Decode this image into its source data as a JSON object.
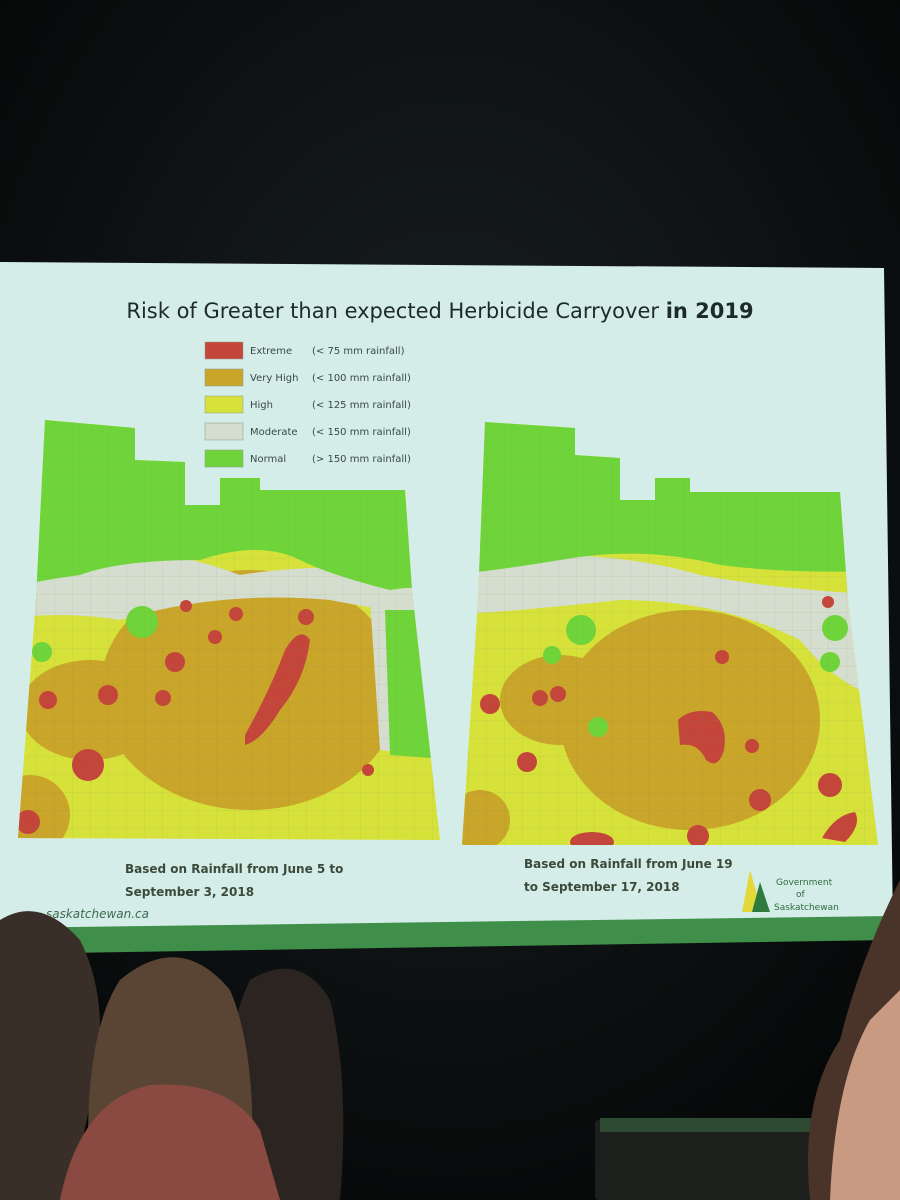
{
  "slide": {
    "title": "Risk of Greater than expected Herbicide Carryover",
    "title_emphasis": "in 2019",
    "legend": [
      {
        "label": "Extreme",
        "range": "(< 75 mm rainfall)",
        "color": "#c4463a"
      },
      {
        "label": "Very High",
        "range": "(< 100 mm rainfall)",
        "color": "#c9a52a"
      },
      {
        "label": "High",
        "range": "(< 125 mm rainfall)",
        "color": "#d6e23a"
      },
      {
        "label": "Moderate",
        "range": "(< 150 mm rainfall)",
        "color": "#d5ddce"
      },
      {
        "label": "Normal",
        "range": "(> 150 mm rainfall)",
        "color": "#6fd43a"
      }
    ],
    "maps": [
      {
        "caption": [
          "Based on Rainfall from June 5 to",
          "September 3, 2018"
        ]
      },
      {
        "caption": [
          "Based on Rainfall from June 19",
          "to September 17, 2018"
        ]
      }
    ],
    "website": "saskatchewan.ca",
    "logo": [
      "Government",
      "of",
      "Saskatchewan"
    ]
  }
}
